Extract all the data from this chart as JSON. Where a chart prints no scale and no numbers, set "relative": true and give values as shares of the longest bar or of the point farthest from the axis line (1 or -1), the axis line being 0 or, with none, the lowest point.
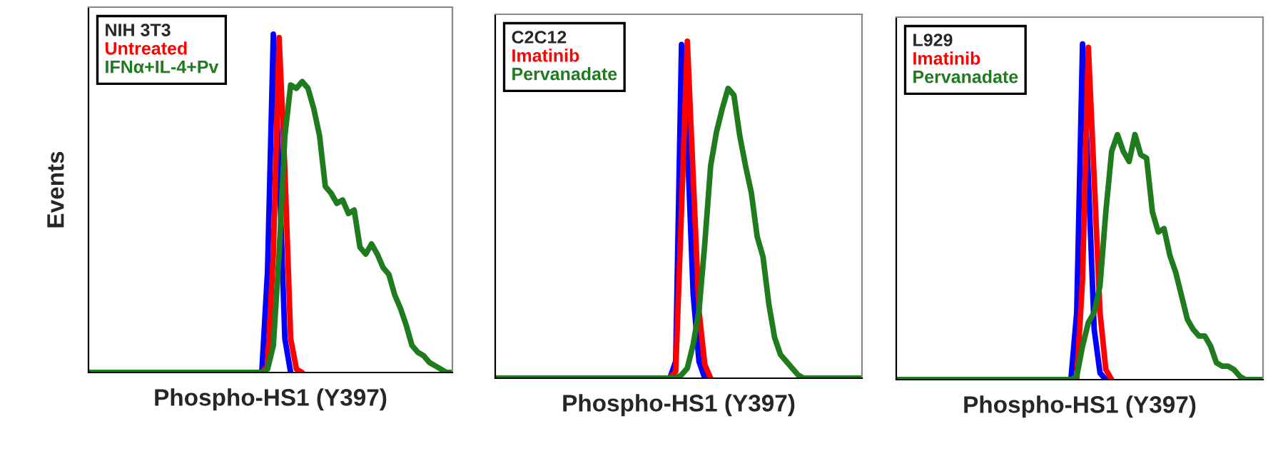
{
  "chart_data": [
    {
      "type": "line",
      "relative": true,
      "legend": "top left",
      "legend_title": "NIH 3T3",
      "xlabel": "Phospho-HS1 (Y397)",
      "ylabel": "Events",
      "tick_labels": false,
      "categories": [
        null,
        null,
        null,
        null,
        null,
        null,
        null,
        null,
        null,
        null,
        null,
        null,
        null,
        null,
        null,
        null,
        null,
        null,
        null,
        null,
        null,
        null,
        null,
        null,
        null,
        null,
        null,
        null,
        null,
        null,
        null,
        null,
        null,
        null,
        null,
        null,
        null,
        null,
        null,
        null,
        null,
        null,
        null,
        null,
        null,
        null,
        null,
        null,
        null,
        null,
        null,
        null,
        null,
        null,
        null,
        null,
        null,
        null,
        null,
        null,
        null,
        null,
        null,
        null
      ],
      "series": [
        {
          "color": "#0000ff",
          "values": [
            null,
            null,
            null,
            null,
            null,
            null,
            null,
            null,
            null,
            null,
            null,
            null,
            null,
            null,
            null,
            null,
            null,
            null,
            null,
            null,
            null,
            null,
            null,
            null,
            null,
            null,
            null,
            null,
            null,
            null,
            0,
            0.3,
            1,
            0.6,
            0.1,
            0,
            null,
            null,
            null,
            null,
            null,
            null,
            null,
            null,
            null,
            null,
            null,
            null,
            null,
            null,
            null,
            null,
            null,
            null,
            null,
            null,
            null,
            null,
            null,
            null,
            null,
            null,
            null,
            null
          ]
        },
        {
          "name": "Untreated",
          "color": "#ff0000",
          "values": [
            null,
            null,
            null,
            null,
            null,
            null,
            null,
            null,
            null,
            null,
            null,
            null,
            null,
            null,
            null,
            null,
            null,
            null,
            null,
            null,
            null,
            null,
            null,
            null,
            null,
            null,
            null,
            null,
            null,
            null,
            0,
            0.02,
            0.35,
            0.99,
            0.6,
            0.1,
            0.01,
            0,
            null,
            null,
            null,
            null,
            null,
            null,
            null,
            null,
            null,
            null,
            null,
            null,
            null,
            null,
            null,
            null,
            null,
            null,
            null,
            null,
            null,
            null,
            null,
            null,
            null,
            null
          ]
        },
        {
          "name": "IFNα+IL-4+Pv",
          "color": "#1e7b1e",
          "values": [
            0,
            0,
            0,
            0,
            0,
            0,
            0,
            0,
            0,
            0,
            0,
            0,
            0,
            0,
            0,
            0,
            0,
            0,
            0,
            0,
            0,
            0,
            0,
            0,
            0,
            0,
            0,
            0,
            0,
            0,
            0,
            0.01,
            0.08,
            0.35,
            0.7,
            0.85,
            0.84,
            0.86,
            0.84,
            0.78,
            0.7,
            0.55,
            0.53,
            0.5,
            0.51,
            0.47,
            0.48,
            0.37,
            0.35,
            0.38,
            0.35,
            0.31,
            0.29,
            0.23,
            0.19,
            0.14,
            0.08,
            0.06,
            0.05,
            0.03,
            0.02,
            0.01,
            0,
            0
          ]
        }
      ]
    },
    {
      "type": "line",
      "relative": true,
      "legend": "top left",
      "legend_title": "C2C12",
      "xlabel": "Phospho-HS1 (Y397)",
      "tick_labels": false,
      "categories": [
        null,
        null,
        null,
        null,
        null,
        null,
        null,
        null,
        null,
        null,
        null,
        null,
        null,
        null,
        null,
        null,
        null,
        null,
        null,
        null,
        null,
        null,
        null,
        null,
        null,
        null,
        null,
        null,
        null,
        null,
        null,
        null,
        null,
        null,
        null,
        null,
        null,
        null,
        null,
        null,
        null,
        null,
        null,
        null,
        null,
        null,
        null,
        null,
        null,
        null,
        null,
        null,
        null,
        null,
        null,
        null,
        null,
        null,
        null,
        null,
        null,
        null,
        null,
        null
      ],
      "series": [
        {
          "color": "#0000ff",
          "values": [
            null,
            null,
            null,
            null,
            null,
            null,
            null,
            null,
            null,
            null,
            null,
            null,
            null,
            null,
            null,
            null,
            null,
            null,
            null,
            null,
            null,
            null,
            null,
            null,
            null,
            null,
            null,
            null,
            null,
            null,
            0,
            0.05,
            0.99,
            0.7,
            0.25,
            0.05,
            0,
            null,
            null,
            null,
            null,
            null,
            null,
            null,
            null,
            null,
            null,
            null,
            null,
            null,
            null,
            null,
            null,
            null,
            null,
            null,
            null,
            null,
            null,
            null,
            null,
            null,
            null,
            null
          ]
        },
        {
          "name": "Imatinib",
          "color": "#ff0000",
          "values": [
            null,
            null,
            null,
            null,
            null,
            null,
            null,
            null,
            null,
            null,
            null,
            null,
            null,
            null,
            null,
            null,
            null,
            null,
            null,
            null,
            null,
            null,
            null,
            null,
            null,
            null,
            null,
            null,
            null,
            null,
            0,
            0.02,
            0.5,
            1,
            0.6,
            0.2,
            0.04,
            0,
            null,
            null,
            null,
            null,
            null,
            null,
            null,
            null,
            null,
            null,
            null,
            null,
            null,
            null,
            null,
            null,
            null,
            null,
            null,
            null,
            null,
            null,
            null,
            null,
            null,
            null
          ]
        },
        {
          "name": "Pervanadate",
          "color": "#1e7b1e",
          "values": [
            0,
            0,
            0,
            0,
            0,
            0,
            0,
            0,
            0,
            0,
            0,
            0,
            0,
            0,
            0,
            0,
            0,
            0,
            0,
            0,
            0,
            0,
            0,
            0,
            0,
            0,
            0,
            0,
            0,
            0,
            0,
            0,
            0.01,
            0.03,
            0.1,
            0.2,
            0.4,
            0.63,
            0.73,
            0.8,
            0.86,
            0.84,
            0.72,
            0.63,
            0.55,
            0.42,
            0.36,
            0.22,
            0.12,
            0.07,
            0.05,
            0.03,
            0.01,
            0,
            0,
            0,
            0,
            0,
            0,
            0,
            0,
            0,
            0,
            0
          ]
        }
      ]
    },
    {
      "type": "line",
      "relative": true,
      "legend": "top left",
      "legend_title": "L929",
      "xlabel": "Phospho-HS1 (Y397)",
      "tick_labels": false,
      "categories": [
        null,
        null,
        null,
        null,
        null,
        null,
        null,
        null,
        null,
        null,
        null,
        null,
        null,
        null,
        null,
        null,
        null,
        null,
        null,
        null,
        null,
        null,
        null,
        null,
        null,
        null,
        null,
        null,
        null,
        null,
        null,
        null,
        null,
        null,
        null,
        null,
        null,
        null,
        null,
        null,
        null,
        null,
        null,
        null,
        null,
        null,
        null,
        null,
        null,
        null,
        null,
        null,
        null,
        null,
        null,
        null,
        null,
        null,
        null,
        null,
        null,
        null,
        null,
        null
      ],
      "series": [
        {
          "color": "#0000ff",
          "values": [
            null,
            null,
            null,
            null,
            null,
            null,
            null,
            null,
            null,
            null,
            null,
            null,
            null,
            null,
            null,
            null,
            null,
            null,
            null,
            null,
            null,
            null,
            null,
            null,
            null,
            null,
            null,
            null,
            null,
            null,
            0,
            0.2,
            1,
            0.6,
            0.15,
            0.02,
            0,
            null,
            null,
            null,
            null,
            null,
            null,
            null,
            null,
            null,
            null,
            null,
            null,
            null,
            null,
            null,
            null,
            null,
            null,
            null,
            null,
            null,
            null,
            null,
            null,
            null,
            null,
            null
          ]
        },
        {
          "name": "Imatinib",
          "color": "#ff0000",
          "values": [
            null,
            null,
            null,
            null,
            null,
            null,
            null,
            null,
            null,
            null,
            null,
            null,
            null,
            null,
            null,
            null,
            null,
            null,
            null,
            null,
            null,
            null,
            null,
            null,
            null,
            null,
            null,
            null,
            null,
            null,
            null,
            0,
            0.3,
            0.99,
            0.6,
            0.2,
            0.03,
            0,
            null,
            null,
            null,
            null,
            null,
            null,
            null,
            null,
            null,
            null,
            null,
            null,
            null,
            null,
            null,
            null,
            null,
            null,
            null,
            null,
            null,
            null,
            null,
            null,
            null,
            null
          ]
        },
        {
          "name": "Pervanadate",
          "color": "#1e7b1e",
          "values": [
            0,
            0,
            0,
            0,
            0,
            0,
            0,
            0,
            0,
            0,
            0,
            0,
            0,
            0,
            0,
            0,
            0,
            0,
            0,
            0,
            0,
            0,
            0,
            0,
            0,
            0,
            0,
            0,
            0,
            0,
            0,
            0.01,
            0.1,
            0.17,
            0.2,
            0.28,
            0.5,
            0.68,
            0.73,
            0.68,
            0.65,
            0.73,
            0.67,
            0.66,
            0.5,
            0.44,
            0.45,
            0.37,
            0.32,
            0.25,
            0.18,
            0.15,
            0.13,
            0.13,
            0.1,
            0.05,
            0.04,
            0.04,
            0.03,
            0.01,
            0,
            0,
            0,
            0
          ]
        }
      ]
    }
  ]
}
